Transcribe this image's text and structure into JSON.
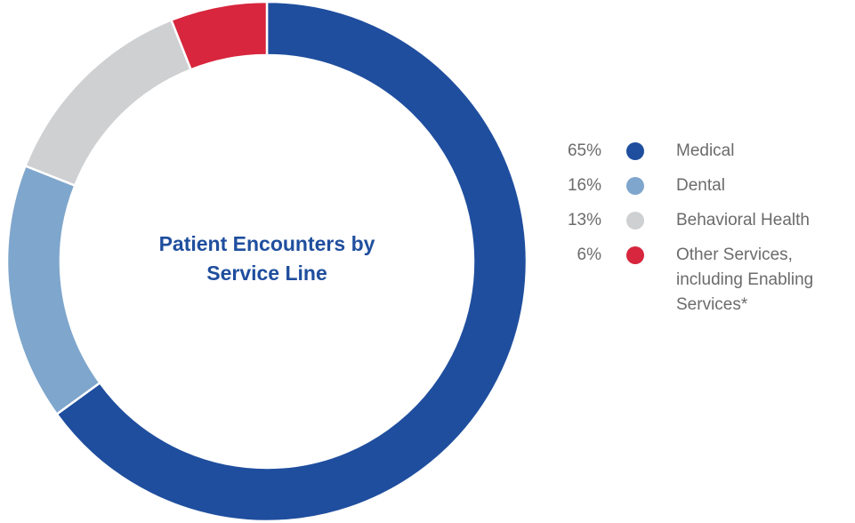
{
  "chart_data": {
    "type": "pie",
    "title_lines": [
      "Patient Encounters by",
      "Service Line"
    ],
    "donut": true,
    "categories": [
      "Medical",
      "Dental",
      "Behavioral Health",
      "Other Services, including Enabling Services*"
    ],
    "values": [
      65,
      16,
      13,
      6
    ],
    "percent_labels": [
      "65%",
      "16%",
      "13%",
      "6%"
    ],
    "colors": [
      "#1f4e9e",
      "#7fa6cc",
      "#cfd0d2",
      "#d7263d"
    ]
  },
  "legend": {
    "items": [
      {
        "pct": "65%",
        "lines": [
          "Medical"
        ],
        "color": "#1f4e9e"
      },
      {
        "pct": "16%",
        "lines": [
          "Dental"
        ],
        "color": "#7fa6cc"
      },
      {
        "pct": "13%",
        "lines": [
          "Behavioral Health"
        ],
        "color": "#cfd0d2"
      },
      {
        "pct": "6%",
        "lines": [
          "Other Services,",
          "including Enabling",
          "Services*"
        ],
        "color": "#d7263d"
      }
    ]
  }
}
